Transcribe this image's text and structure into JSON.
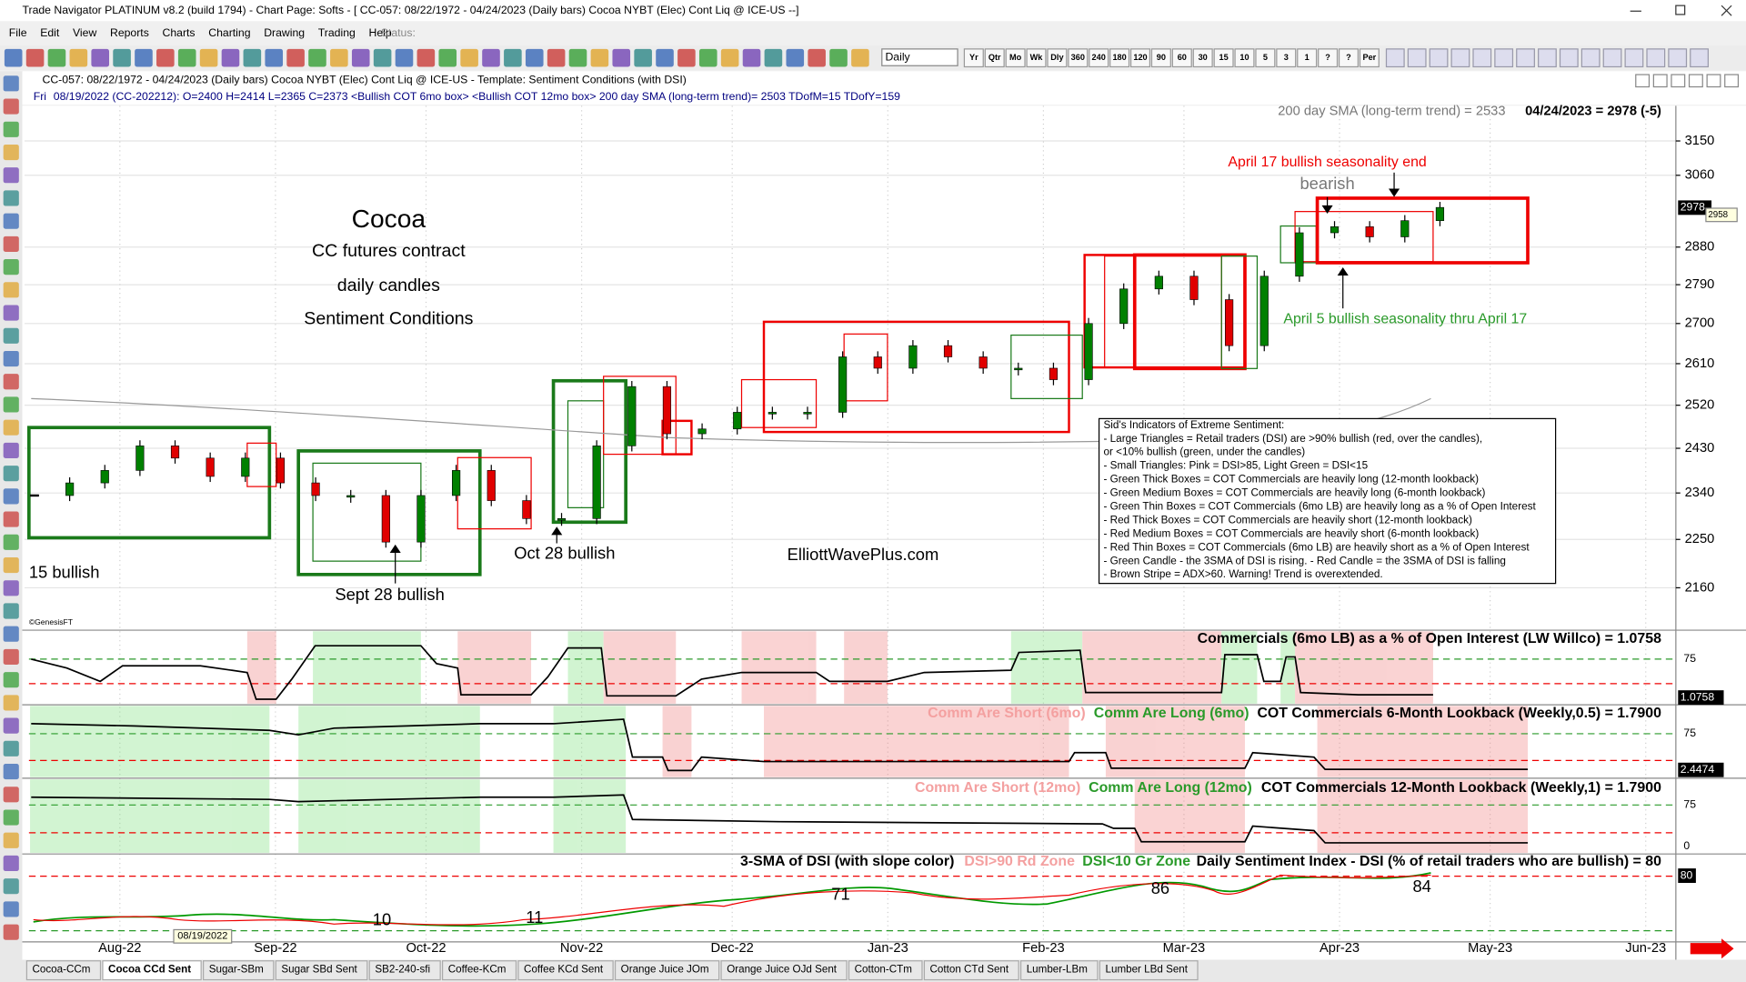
{
  "window": {
    "title": "Trade Navigator PLATINUM v8.2 (build 1794) - Chart Page: Softs - [ CC-057: 08/22/1972 - 04/24/2023 (Daily bars)   Cocoa NYBT (Elec) Cont Liq @ ICE-US  --]"
  },
  "menu": [
    "File",
    "Edit",
    "View",
    "Reports",
    "Charts",
    "Charting",
    "Drawing",
    "Trading",
    "Help"
  ],
  "status_label": "Status:",
  "toolbar": {
    "interval": "Daily",
    "buttons": [
      "Yr",
      "Qtr",
      "Mo",
      "Wk",
      "Dly",
      "360",
      "240",
      "180",
      "120",
      "90",
      "60",
      "30",
      "15",
      "10",
      "5",
      "3",
      "1",
      "?",
      "?",
      "Per"
    ]
  },
  "chart_header": {
    "line1": "CC-057:  08/22/1972 - 04/24/2023  (Daily bars)    Cocoa NYBT (Elec) Cont Liq @ ICE-US   -   Template: Sentiment Conditions (with DSI)",
    "day": "Fri",
    "line2": "08/19/2022 (CC-202212):  O=2400  H=2414  L=2365  C=2373  <Bullish COT 6mo box>  <Bullish COT 12mo box>  200 day SMA (long-term trend)= 2503  TDofM=15  TDofY=159"
  },
  "price_chart": {
    "log_scale": true,
    "ylim": [
      2086,
      3245
    ],
    "yticks": [
      2160,
      2250,
      2340,
      2430,
      2520,
      2610,
      2700,
      2790,
      2880,
      3060,
      3150
    ],
    "xlim": [
      "2022-07-13",
      "2023-06-07"
    ],
    "xticks": [
      {
        "value": "2022-08",
        "label": "Aug-22"
      },
      {
        "value": "2022-09",
        "label": "Sep-22"
      },
      {
        "value": "2022-10",
        "label": "Oct-22"
      },
      {
        "value": "2022-11",
        "label": "Nov-22"
      },
      {
        "value": "2022-12",
        "label": "Dec-22"
      },
      {
        "value": "2023-01",
        "label": "Jan-23"
      },
      {
        "value": "2023-02",
        "label": "Feb-23"
      },
      {
        "value": "2023-03",
        "label": "Mar-23"
      },
      {
        "value": "2023-04",
        "label": "Apr-23"
      },
      {
        "value": "2023-05",
        "label": "May-23"
      },
      {
        "value": "2023-06",
        "label": "Jun-23"
      }
    ],
    "dates": [
      "2022-07-15",
      "2022-07-22",
      "2022-07-29",
      "2022-08-05",
      "2022-08-12",
      "2022-08-19",
      "2022-08-26",
      "2022-09-02",
      "2022-09-09",
      "2022-09-16",
      "2022-09-23",
      "2022-09-30",
      "2022-10-07",
      "2022-10-14",
      "2022-10-21",
      "2022-10-28",
      "2022-11-04",
      "2022-11-11",
      "2022-11-18",
      "2022-11-25",
      "2022-12-02",
      "2022-12-09",
      "2022-12-16",
      "2022-12-23",
      "2022-12-30",
      "2023-01-06",
      "2023-01-13",
      "2023-01-20",
      "2023-01-27",
      "2023-02-03",
      "2023-02-10",
      "2023-02-17",
      "2023-02-24",
      "2023-03-03",
      "2023-03-10",
      "2023-03-17",
      "2023-03-24",
      "2023-03-31",
      "2023-04-07",
      "2023-04-14",
      "2023-04-21"
    ],
    "closes": [
      2335,
      2360,
      2385,
      2435,
      2410,
      2373,
      2410,
      2360,
      2335,
      2335,
      2245,
      2335,
      2385,
      2325,
      2290,
      2290,
      2435,
      2560,
      2460,
      2470,
      2505,
      2505,
      2505,
      2625,
      2600,
      2650,
      2625,
      2600,
      2600,
      2575,
      2700,
      2780,
      2810,
      2755,
      2650,
      2810,
      2915,
      2930,
      2905,
      2945,
      2978
    ],
    "up_color": "#008000",
    "down_color": "#e00000",
    "current_price": "2978",
    "alt_price": "2958",
    "sma_note": "200 day SMA (long-term trend) = 2533",
    "last_note": "04/24/2023 = 2978 (-5)",
    "hover_date": "08/19/2022",
    "copyright": "©GenesisFT",
    "annotations": {
      "title": "Cocoa",
      "sub1": "CC futures contract",
      "sub2": "daily candles",
      "sub3": "Sentiment Conditions",
      "april17": "April 17 bullish seasonality end",
      "bearish": "bearish",
      "april5": "April 5 bullish seasonality thru April 17",
      "b15": "15 bullish",
      "sept28": "Sept 28 bullish",
      "oct28": "Oct 28 bullish",
      "site": "ElliottWavePlus.com"
    },
    "legend": [
      "Sid's Indicators of Extreme Sentiment:",
      "- Large Triangles = Retail traders (DSI) are >90% bullish (red, over the candles),",
      "or <10% bullish (green, under the candles)",
      "- Small Triangles: Pink = DSI>85, Light Green = DSI<15",
      "- Green Thick Boxes = COT Commercials are heavily long (12-month lookback)",
      "- Green Medium Boxes = COT Commercials are heavily long (6-month lookback)",
      "- Green Thin Boxes = COT Commercials (6mo LB) are heavily long as a % of Open Interest",
      "- Red Thick Boxes = COT Commercials are heavily short (12-month lookback)",
      "- Red Medium Boxes = COT Commercials are heavily short (6-month lookback)",
      "- Red Thin Boxes = COT Commercials (6mo LB) are heavily short as a % of Open Interest",
      "- Green Candle - the 3SMA of DSI is rising.  - Red Candle = the 3SMA of DSI is falling",
      "- Brown Stripe = ADX>60. Warning! Trend is overextended."
    ]
  },
  "panels": [
    {
      "title": "Commercials (6mo LB) as a % of Open Interest (LW Willco) = 1.0758",
      "tick": "75",
      "marker": "1.0758"
    },
    {
      "short": "Comm Are Short (6mo)",
      "long": "Comm Are Long (6mo)",
      "title": "COT Commercials 6-Month Lookback (Weekly,0.5) = 1.7900",
      "tick": "75",
      "marker": "2.4474"
    },
    {
      "short": "Comm Are Short (12mo)",
      "long": "Comm Are Long (12mo)",
      "title": "COT Commercials 12-Month Lookback (Weekly,1) = 1.7900",
      "tick": "75",
      "tick0": "0"
    },
    {
      "sma": "3-SMA of DSI (with slope color)",
      "red": "DSI>90 Rd Zone",
      "green": "DSI<10 Gr Zone",
      "title": "Daily Sentiment Index - DSI (% of retail traders who are bullish) = 80",
      "marker": "80",
      "labels": [
        "10",
        "11",
        "71",
        "86",
        "84"
      ]
    }
  ],
  "tabs": [
    "Cocoa-CCm",
    "Cocoa CCd Sent",
    "Sugar-SBm",
    "Sugar SBd Sent",
    "SB2-240-sfi",
    "Coffee-KCm",
    "Coffee KCd Sent",
    "Orange Juice JOm",
    "Orange Juice OJd Sent",
    "Cotton-CTm",
    "Cotton CTd Sent",
    "Lumber-LBm",
    "Lumber LBd Sent"
  ]
}
